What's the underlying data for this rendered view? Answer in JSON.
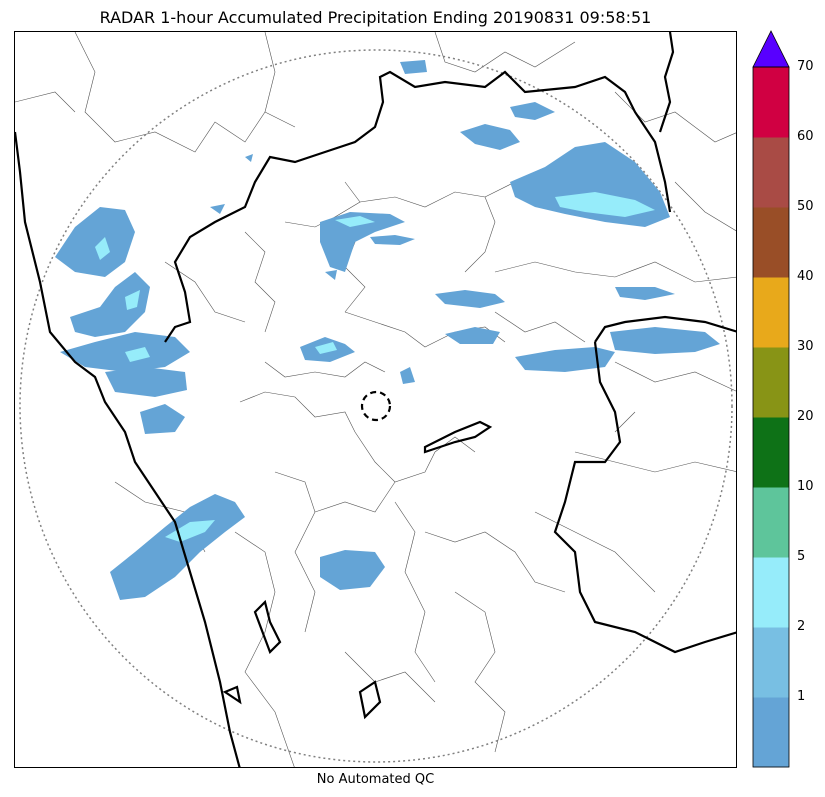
{
  "title": "RADAR 1-hour Accumulated Precipitation Ending 20190831 09:58:51",
  "footer_label": "No Automated QC",
  "colorbar": {
    "tick_labels": [
      "1",
      "2",
      "5",
      "10",
      "20",
      "30",
      "40",
      "50",
      "60",
      "70"
    ],
    "bins": [
      {
        "color": "#64a4d6"
      },
      {
        "color": "#78bfe3"
      },
      {
        "color": "#96ecfa"
      },
      {
        "color": "#5ec59b"
      },
      {
        "color": "#0e7217"
      },
      {
        "color": "#889416"
      },
      {
        "color": "#e8a91b"
      },
      {
        "color": "#994e27"
      },
      {
        "color": "#a94b45"
      },
      {
        "color": "#d00042"
      }
    ],
    "extend_color": "#5800ff"
  },
  "colors": {
    "precip_light": "#64a4d6",
    "precip_medium": "#96ecfa",
    "precip_heavy": "#5ec59b",
    "state_border": "#000000",
    "district_border": "#555555",
    "range_ring": "#808080"
  }
}
